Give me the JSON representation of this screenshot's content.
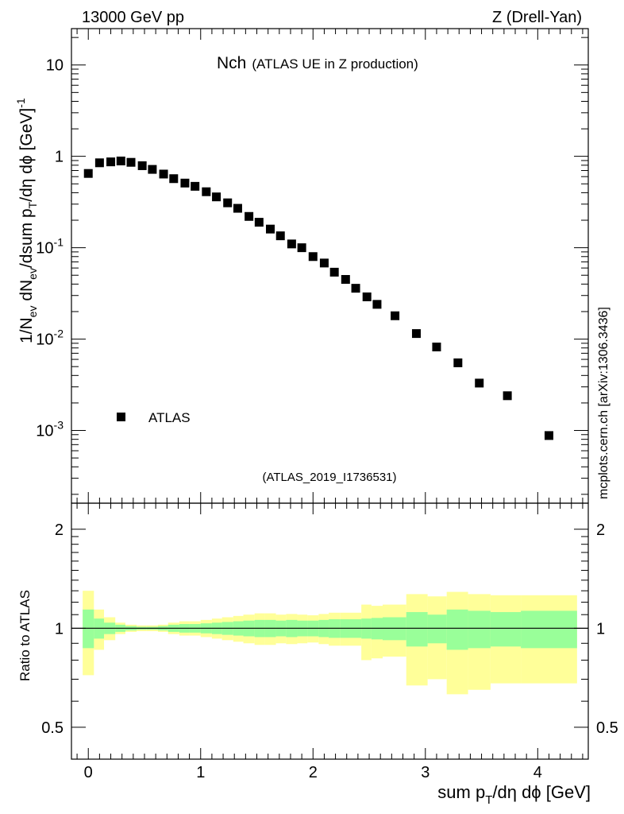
{
  "header": {
    "left": "13000 GeV pp",
    "right": "Z (Drell-Yan)"
  },
  "plot": {
    "title_main": "Nch",
    "title_sub": "(ATLAS UE in Z production)",
    "analysis_id": "(ATLAS_2019_I1736531)",
    "side_label": "mcplots.cern.ch [arXiv:1306.3436]",
    "legend_label": "ATLAS"
  },
  "colors": {
    "markers": "#000000",
    "band_outer": "#ffff99",
    "band_inner": "#99ff99",
    "analysis_id_text": "#999999",
    "side_label_text": "#808080"
  },
  "chart_data": [
    {
      "type": "scatter",
      "title": "Nch (ATLAS UE in Z production)",
      "xlabel": "sum pT/dη dϕ [GeV]",
      "ylabel": "1/Nev dNev/dsum pT/dη dϕ [GeV]^-1",
      "xlim": [
        -0.15,
        4.45
      ],
      "ylim": [
        0.00016,
        25
      ],
      "yscale": "log",
      "y_ticks": [
        {
          "value": 10,
          "label": "10"
        },
        {
          "value": 1,
          "label": "1"
        },
        {
          "value": 0.1,
          "label": "10^-1"
        },
        {
          "value": 0.01,
          "label": "10^-2"
        },
        {
          "value": 0.001,
          "label": "10^-3"
        }
      ],
      "series": [
        {
          "name": "ATLAS",
          "x": [
            0.0,
            0.1,
            0.2,
            0.29,
            0.38,
            0.48,
            0.57,
            0.67,
            0.76,
            0.86,
            0.95,
            1.05,
            1.14,
            1.24,
            1.33,
            1.43,
            1.52,
            1.62,
            1.71,
            1.81,
            1.9,
            2.0,
            2.1,
            2.19,
            2.29,
            2.38,
            2.48,
            2.57,
            2.73,
            2.92,
            3.1,
            3.29,
            3.48,
            3.73,
            4.1
          ],
          "y": [
            0.65,
            0.85,
            0.87,
            0.89,
            0.86,
            0.79,
            0.72,
            0.64,
            0.57,
            0.51,
            0.47,
            0.41,
            0.36,
            0.31,
            0.27,
            0.22,
            0.19,
            0.16,
            0.135,
            0.11,
            0.1,
            0.08,
            0.068,
            0.054,
            0.045,
            0.036,
            0.029,
            0.024,
            0.018,
            0.0115,
            0.0082,
            0.0055,
            0.0033,
            0.0024,
            0.00088
          ]
        }
      ]
    },
    {
      "type": "area",
      "title": "Ratio to ATLAS",
      "xlabel": "sum pT/dη dϕ [GeV]",
      "ylabel": "Ratio to ATLAS",
      "xlim": [
        -0.15,
        4.45
      ],
      "ylim": [
        0.4,
        2.4
      ],
      "yscale": "log",
      "x_ticks": [
        0,
        1,
        2,
        3,
        4
      ],
      "y_ticks": [
        {
          "value": 2,
          "label": "2"
        },
        {
          "value": 1,
          "label": "1"
        },
        {
          "value": 0.5,
          "label": "0.5"
        }
      ],
      "reference_line": 1,
      "bins": [
        {
          "x0": -0.05,
          "x1": 0.05,
          "inner": [
            0.87,
            1.14
          ],
          "outer": [
            0.72,
            1.3
          ]
        },
        {
          "x0": 0.05,
          "x1": 0.14,
          "inner": [
            0.93,
            1.07
          ],
          "outer": [
            0.86,
            1.14
          ]
        },
        {
          "x0": 0.14,
          "x1": 0.24,
          "inner": [
            0.96,
            1.04
          ],
          "outer": [
            0.92,
            1.08
          ]
        },
        {
          "x0": 0.24,
          "x1": 0.33,
          "inner": [
            0.975,
            1.025
          ],
          "outer": [
            0.96,
            1.04
          ]
        },
        {
          "x0": 0.33,
          "x1": 0.43,
          "inner": [
            0.985,
            1.015
          ],
          "outer": [
            0.975,
            1.025
          ]
        },
        {
          "x0": 0.43,
          "x1": 0.52,
          "inner": [
            0.99,
            1.01
          ],
          "outer": [
            0.98,
            1.02
          ]
        },
        {
          "x0": 0.52,
          "x1": 0.62,
          "inner": [
            0.99,
            1.01
          ],
          "outer": [
            0.98,
            1.02
          ]
        },
        {
          "x0": 0.62,
          "x1": 0.71,
          "inner": [
            0.985,
            1.015
          ],
          "outer": [
            0.975,
            1.025
          ]
        },
        {
          "x0": 0.71,
          "x1": 0.81,
          "inner": [
            0.975,
            1.025
          ],
          "outer": [
            0.96,
            1.04
          ]
        },
        {
          "x0": 0.81,
          "x1": 0.9,
          "inner": [
            0.97,
            1.03
          ],
          "outer": [
            0.95,
            1.05
          ]
        },
        {
          "x0": 0.9,
          "x1": 1.0,
          "inner": [
            0.97,
            1.03
          ],
          "outer": [
            0.95,
            1.05
          ]
        },
        {
          "x0": 1.0,
          "x1": 1.1,
          "inner": [
            0.965,
            1.035
          ],
          "outer": [
            0.94,
            1.06
          ]
        },
        {
          "x0": 1.1,
          "x1": 1.19,
          "inner": [
            0.96,
            1.04
          ],
          "outer": [
            0.93,
            1.07
          ]
        },
        {
          "x0": 1.19,
          "x1": 1.29,
          "inner": [
            0.955,
            1.045
          ],
          "outer": [
            0.92,
            1.08
          ]
        },
        {
          "x0": 1.29,
          "x1": 1.38,
          "inner": [
            0.95,
            1.05
          ],
          "outer": [
            0.91,
            1.09
          ]
        },
        {
          "x0": 1.38,
          "x1": 1.48,
          "inner": [
            0.945,
            1.055
          ],
          "outer": [
            0.9,
            1.1
          ]
        },
        {
          "x0": 1.48,
          "x1": 1.57,
          "inner": [
            0.94,
            1.06
          ],
          "outer": [
            0.89,
            1.11
          ]
        },
        {
          "x0": 1.57,
          "x1": 1.67,
          "inner": [
            0.94,
            1.06
          ],
          "outer": [
            0.89,
            1.11
          ]
        },
        {
          "x0": 1.67,
          "x1": 1.76,
          "inner": [
            0.945,
            1.055
          ],
          "outer": [
            0.9,
            1.1
          ]
        },
        {
          "x0": 1.76,
          "x1": 1.86,
          "inner": [
            0.94,
            1.06
          ],
          "outer": [
            0.895,
            1.105
          ]
        },
        {
          "x0": 1.86,
          "x1": 1.95,
          "inner": [
            0.945,
            1.055
          ],
          "outer": [
            0.9,
            1.1
          ]
        },
        {
          "x0": 1.95,
          "x1": 2.05,
          "inner": [
            0.945,
            1.055
          ],
          "outer": [
            0.905,
            1.095
          ]
        },
        {
          "x0": 2.05,
          "x1": 2.14,
          "inner": [
            0.94,
            1.06
          ],
          "outer": [
            0.895,
            1.105
          ]
        },
        {
          "x0": 2.14,
          "x1": 2.24,
          "inner": [
            0.935,
            1.065
          ],
          "outer": [
            0.885,
            1.115
          ]
        },
        {
          "x0": 2.24,
          "x1": 2.33,
          "inner": [
            0.935,
            1.065
          ],
          "outer": [
            0.885,
            1.115
          ]
        },
        {
          "x0": 2.33,
          "x1": 2.43,
          "inner": [
            0.935,
            1.065
          ],
          "outer": [
            0.885,
            1.115
          ]
        },
        {
          "x0": 2.43,
          "x1": 2.52,
          "inner": [
            0.93,
            1.07
          ],
          "outer": [
            0.8,
            1.18
          ]
        },
        {
          "x0": 2.52,
          "x1": 2.62,
          "inner": [
            0.925,
            1.075
          ],
          "outer": [
            0.81,
            1.17
          ]
        },
        {
          "x0": 2.62,
          "x1": 2.83,
          "inner": [
            0.92,
            1.08
          ],
          "outer": [
            0.82,
            1.18
          ]
        },
        {
          "x0": 2.83,
          "x1": 3.02,
          "inner": [
            0.88,
            1.12
          ],
          "outer": [
            0.67,
            1.27
          ]
        },
        {
          "x0": 3.02,
          "x1": 3.19,
          "inner": [
            0.9,
            1.1
          ],
          "outer": [
            0.7,
            1.25
          ]
        },
        {
          "x0": 3.19,
          "x1": 3.38,
          "inner": [
            0.86,
            1.14
          ],
          "outer": [
            0.63,
            1.29
          ]
        },
        {
          "x0": 3.38,
          "x1": 3.58,
          "inner": [
            0.87,
            1.13
          ],
          "outer": [
            0.65,
            1.27
          ]
        },
        {
          "x0": 3.58,
          "x1": 3.85,
          "inner": [
            0.88,
            1.12
          ],
          "outer": [
            0.68,
            1.26
          ]
        },
        {
          "x0": 3.85,
          "x1": 4.35,
          "inner": [
            0.87,
            1.13
          ],
          "outer": [
            0.68,
            1.26
          ]
        }
      ]
    }
  ]
}
